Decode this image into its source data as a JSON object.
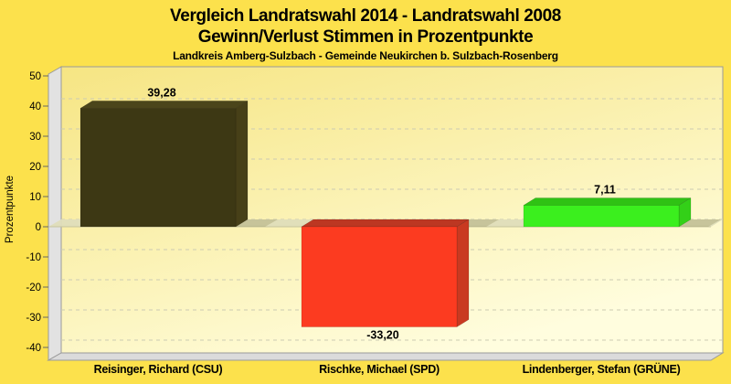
{
  "header": {
    "title_line1": "Vergleich Landratswahl 2014 - Landratswahl 2008",
    "title_line2": "Gewinn/Verlust Stimmen in Prozentpunkte",
    "subtitle": "Landkreis Amberg-Sulzbach - Gemeinde Neukirchen b. Sulzbach-Rosenberg"
  },
  "chart_data": {
    "type": "bar",
    "style": "3d-bars, horizontal dashed gridlines, gradient back wall",
    "title": "Vergleich Landratswahl 2014 - Landratswahl 2008",
    "subtitle": "Gewinn/Verlust Stimmen in Prozentpunkte",
    "footnote": "Landkreis Amberg-Sulzbach - Gemeinde Neukirchen b. Sulzbach-Rosenberg",
    "ylabel": "Prozentpunkte",
    "ylim": [
      -40,
      50
    ],
    "ytick_step": 10,
    "yticks": [
      50,
      40,
      30,
      20,
      10,
      0,
      -10,
      -20,
      -30,
      -40
    ],
    "grid": "on",
    "legend": "none",
    "categories": [
      "Reisinger, Richard (CSU)",
      "Rischke, Michael (SPD)",
      "Lindenberger, Stefan (GRÜNE)"
    ],
    "values": [
      39.28,
      -33.2,
      7.11
    ],
    "value_labels": [
      "39,28",
      "-33,20",
      "7,11"
    ],
    "series_colors": [
      {
        "front": "#3D3814",
        "top": "#4B451B",
        "side": "#474018"
      },
      {
        "front": "#FC3B20",
        "top": "#BC3722",
        "side": "#C93A21"
      },
      {
        "front": "#3BEF1E",
        "top": "#2FC214",
        "side": "#33D018"
      }
    ],
    "colors": {
      "page_background": "#FCE14C",
      "plot_gradient_top": "#F6E583",
      "plot_gradient_bottom": "#FFFDDE",
      "wall_gray": "#E2E2E2",
      "floor_gray": "#DBDBDB",
      "frame_line": "#9A9A9A",
      "gridline": "#CCCBB2",
      "zero_plane": "#DFDDBB",
      "text": "#000000"
    }
  }
}
